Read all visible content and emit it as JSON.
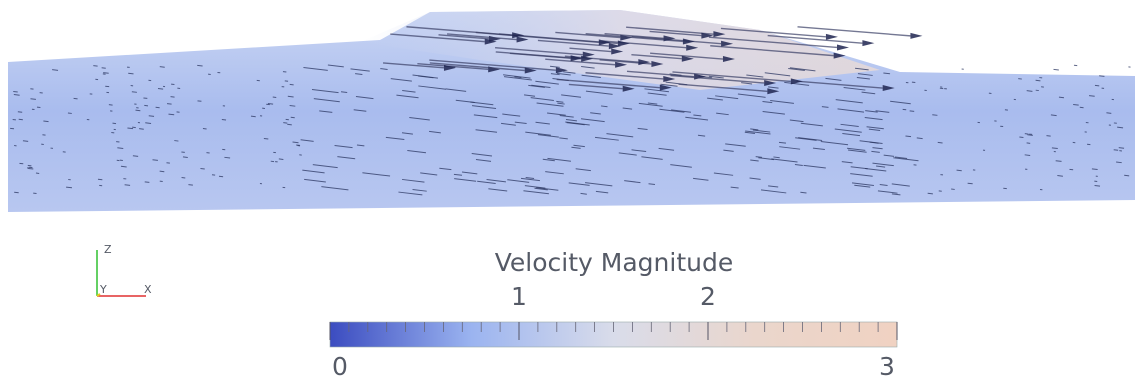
{
  "colorbar": {
    "title": "Velocity Magnitude",
    "range": [
      0,
      3
    ],
    "ticks": [
      0,
      1,
      2,
      3
    ],
    "colors": [
      "#3b4cc0",
      "#9bb4f0",
      "#d9dcea",
      "#ead6cc",
      "#f0d2c2"
    ]
  },
  "axes_triad": {
    "x": "X",
    "y": "Y",
    "z": "Z",
    "x_color": "#e03030",
    "y_color": "#e0d020",
    "z_color": "#30c030"
  }
}
